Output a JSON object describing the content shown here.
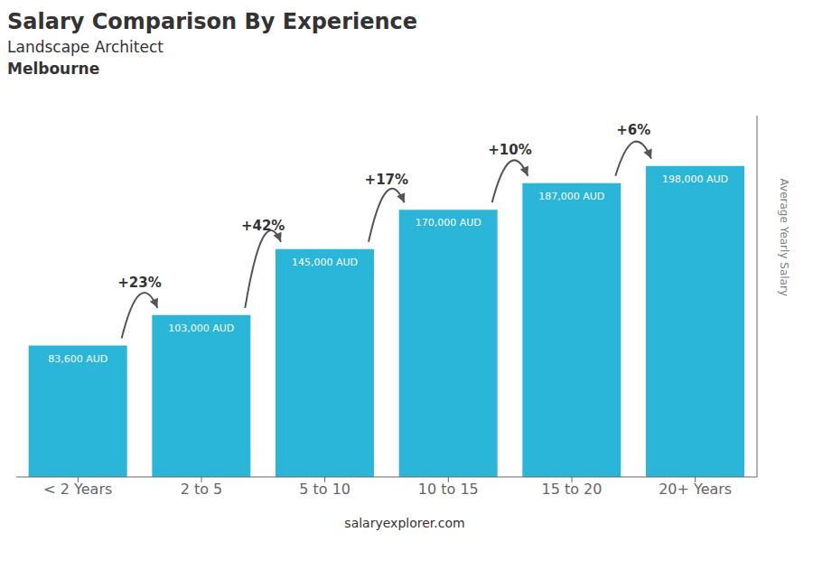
{
  "chart_data": {
    "type": "bar",
    "title": "Salary Comparison By Experience",
    "subtitle": "Landscape Architect",
    "annotations": [
      "Melbourne",
      "salaryexplorer.com"
    ],
    "change_labels": [
      "+23%",
      "+42%",
      "+17%",
      "+10%",
      "+6%"
    ],
    "categories": [
      "< 2 Years",
      "2 to 5",
      "5 to 10",
      "10 to 15",
      "15 to 20",
      "20+ Years"
    ],
    "values": [
      83600,
      103000,
      145000,
      170000,
      187000,
      198000
    ],
    "value_labels": [
      "83,600 AUD",
      "103,000 AUD",
      "145,000 AUD",
      "170,000 AUD",
      "187,000 AUD",
      "198,000 AUD"
    ],
    "data_labels": true,
    "color": "#29b6d8",
    "ylabel": "Average Yearly Salary",
    "ylim": [
      0,
      230000
    ],
    "tick_labels": "x",
    "grid": false
  }
}
